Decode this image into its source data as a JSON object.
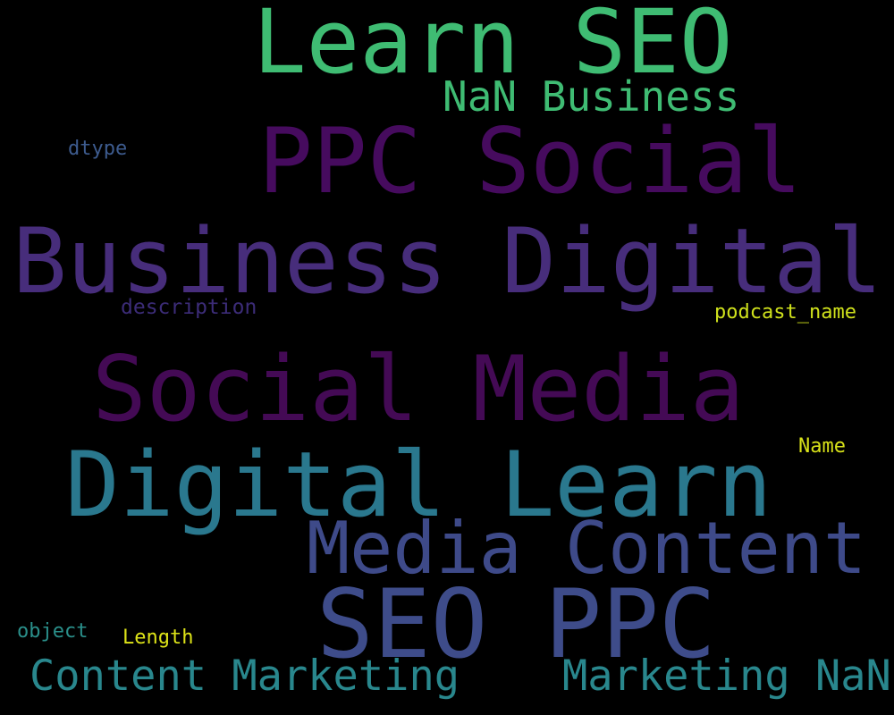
{
  "word_cloud": {
    "background": "#000000",
    "words": [
      {
        "text": "Learn SEO",
        "color": "#3fbc73"
      },
      {
        "text": "NaN Business",
        "color": "#3fbc73"
      },
      {
        "text": "PPC Social",
        "color": "#460b5e"
      },
      {
        "text": "dtype",
        "color": "#3d5b8e"
      },
      {
        "text": "Business Digital",
        "color": "#472d7b"
      },
      {
        "text": "description",
        "color": "#3c2c78"
      },
      {
        "text": "podcast_name",
        "color": "#cfe11c"
      },
      {
        "text": "Social Media",
        "color": "#440a55"
      },
      {
        "text": "Name",
        "color": "#d8e219"
      },
      {
        "text": "Digital Learn",
        "color": "#2a788e"
      },
      {
        "text": "Media Content",
        "color": "#3e4a89"
      },
      {
        "text": "SEO PPC",
        "color": "#3e4c8a"
      },
      {
        "text": "object",
        "color": "#2a8f8a"
      },
      {
        "text": "Length",
        "color": "#dde318"
      },
      {
        "text": "Content Marketing",
        "color": "#29878d"
      },
      {
        "text": "Marketing NaN",
        "color": "#29878d"
      }
    ]
  }
}
